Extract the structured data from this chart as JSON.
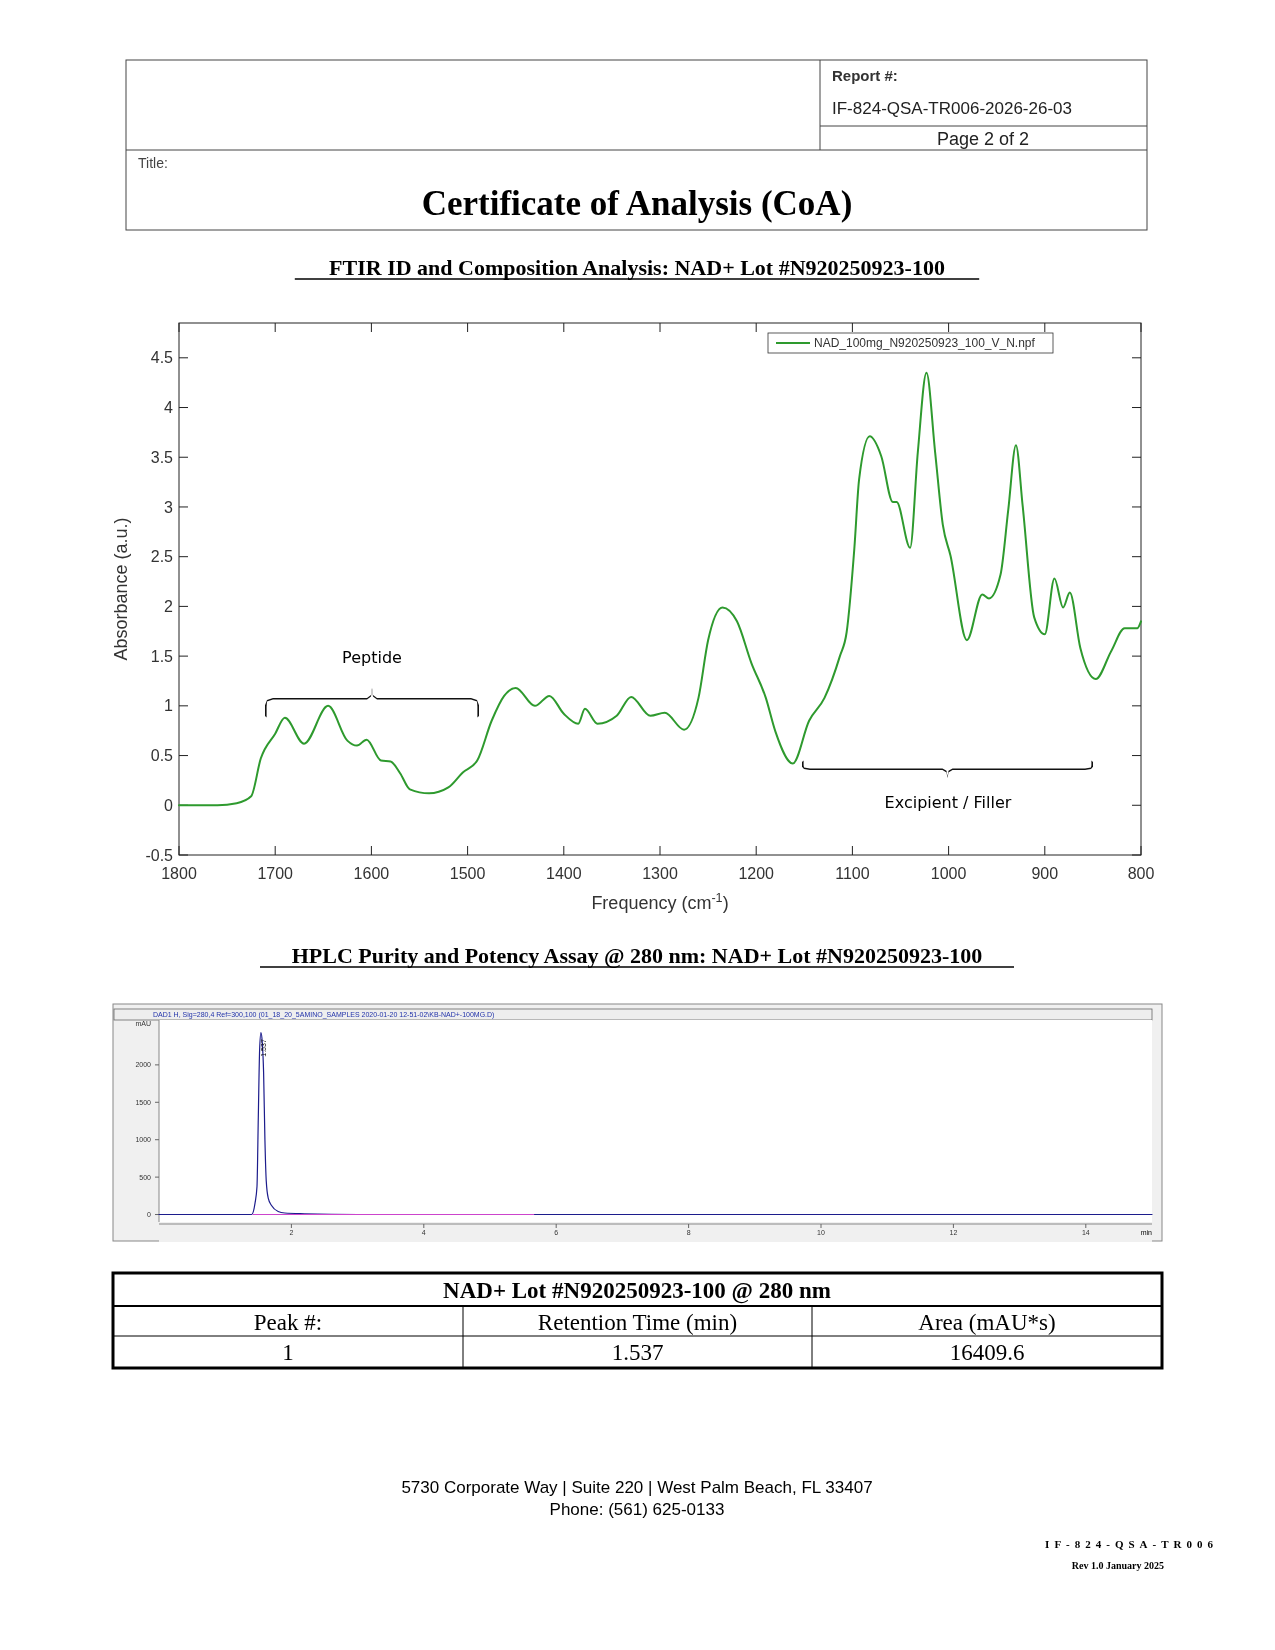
{
  "chart_data": [
    {
      "type": "other",
      "title": "Certificate of Analysis (CoA)",
      "annotations": [
        "Report #:",
        "IF-824-QSA-TR006-2026-26-03",
        "Page 2 of 2",
        "Title:"
      ]
    },
    {
      "type": "line",
      "title": "FTIR ID and Composition Analysis: NAD+  Lot #N920250923-100",
      "xlabel": "Frequency (cm$^{-1}$)",
      "ylabel": "Absorbance (a.u.)",
      "xlim": [
        1800,
        800
      ],
      "xticks": [
        1800,
        1700,
        1600,
        1500,
        1400,
        1300,
        1200,
        1100,
        1000,
        900,
        800
      ],
      "ylim": [
        -0.5,
        4.85
      ],
      "yticks": [
        -0.5,
        0,
        0.5,
        1,
        1.5,
        2,
        2.5,
        3,
        3.5,
        4,
        4.5
      ],
      "legend": "top right",
      "grid": false,
      "series": [
        {
          "name": "NAD_100mg_N920250923_100_V_N.npf",
          "color": "#2e9a2e",
          "line_style": "solid",
          "x": [
            1800,
            1760,
            1740,
            1725,
            1715,
            1700,
            1690,
            1670,
            1645,
            1625,
            1615,
            1605,
            1590,
            1580,
            1570,
            1560,
            1540,
            1520,
            1505,
            1490,
            1475,
            1462,
            1450,
            1430,
            1415,
            1400,
            1385,
            1378,
            1365,
            1345,
            1330,
            1310,
            1295,
            1275,
            1260,
            1250,
            1235,
            1220,
            1205,
            1190,
            1180,
            1162,
            1145,
            1129,
            1113,
            1106,
            1098,
            1093,
            1082,
            1070,
            1058,
            1054,
            1040,
            1032,
            1023,
            1014,
            1006,
            998,
            981,
            965,
            958,
            946,
            938,
            930,
            923,
            911,
            900,
            890,
            881,
            874,
            863,
            847,
            831,
            817,
            804,
            800
          ],
          "values": [
            0,
            0,
            0.02,
            0.09,
            0.47,
            0.72,
            0.88,
            0.62,
            1.0,
            0.65,
            0.6,
            0.66,
            0.45,
            0.44,
            0.32,
            0.16,
            0.12,
            0.18,
            0.33,
            0.45,
            0.85,
            1.1,
            1.18,
            1.0,
            1.1,
            0.92,
            0.82,
            0.97,
            0.82,
            0.9,
            1.09,
            0.9,
            0.93,
            0.76,
            1.08,
            1.66,
            1.99,
            1.85,
            1.43,
            1.08,
            0.74,
            0.42,
            0.85,
            1.08,
            1.5,
            1.74,
            2.58,
            3.28,
            3.71,
            3.51,
            3.05,
            3.05,
            2.59,
            3.55,
            4.35,
            3.55,
            2.82,
            2.51,
            1.66,
            2.12,
            2.08,
            2.32,
            2.97,
            3.62,
            3.01,
            1.89,
            1.72,
            2.28,
            1.99,
            2.14,
            1.58,
            1.27,
            1.55,
            1.78,
            1.78,
            1.85
          ]
        }
      ],
      "annotations": [
        "Peptide",
        "Excipient / Filler"
      ]
    },
    {
      "type": "line",
      "title": "HPLC Purity and Potency Assay @ 280 nm: NAD+  Lot #N920250923-100",
      "subtitle": "DAD1 H, Sig=280,4 Ref=300,100 (01_18_20_5AMINO_SAMPLES 2020-01-20 12-51-02\\KB-NAD+-100MG.D)",
      "xlabel": "min",
      "ylabel": "mAU",
      "xlim": [
        0,
        15
      ],
      "xticks": [
        2,
        4,
        6,
        8,
        10,
        12,
        14
      ],
      "ylim": [
        -100,
        2600
      ],
      "yticks": [
        0,
        500,
        1000,
        1500,
        2000
      ],
      "grid": false,
      "series": [
        {
          "color": "#1c1c8c",
          "x": [
            0,
            1.3,
            1.4,
            1.45,
            1.48,
            1.5,
            1.52,
            1.54,
            1.56,
            1.58,
            1.6,
            1.62,
            1.65,
            1.7,
            1.8,
            1.9,
            2.2,
            3,
            15
          ],
          "values": [
            0,
            0,
            0,
            150,
            370,
            1300,
            2200,
            2430,
            2300,
            1900,
            1000,
            450,
            220,
            120,
            40,
            20,
            10,
            0,
            0
          ]
        },
        {
          "color": "#cc44cc",
          "x": [
            1.42,
            5.66
          ],
          "values": [
            0,
            0
          ]
        }
      ],
      "annotations": [
        {
          "text": "1.537",
          "x": 1.537,
          "y": 2430
        }
      ]
    },
    {
      "type": "other",
      "title": "NAD+  Lot #N920250923-100 @ 280 nm",
      "annotations": [
        "Peak #:",
        "Retention Time (min)",
        "Area (mAU*s)",
        "1",
        "1.537",
        "16409.6",
        "5730 Corporate Way | Suite 220 | West Palm Beach, FL 33407",
        "Phone: (561) 625-0133",
        "IF-824-QSA-TR006",
        "Rev 1.0 January 2025"
      ]
    }
  ]
}
